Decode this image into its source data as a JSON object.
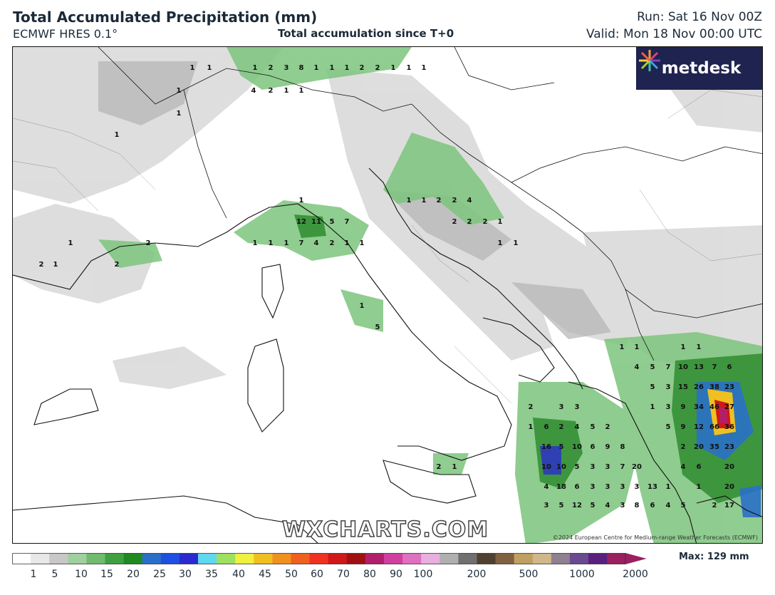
{
  "header": {
    "title": "Total Accumulated Precipitation (mm)",
    "model": "ECMWF HRES 0.1°",
    "subtitle": "Total accumulation since T+0",
    "run": "Run: Sat 16 Nov 00Z",
    "valid": "Valid: Mon 18 Nov 00:00 UTC"
  },
  "map": {
    "logo_text": "metdesk",
    "watermark": "WXCHARTS.COM",
    "copyright": "©2024 European Centre for Medium-range Weather Forecasts (ECMWF)",
    "precip_labels": [
      {
        "text": "1"
      },
      {
        "text": "1"
      },
      {
        "text": "1"
      },
      {
        "text": "2"
      },
      {
        "text": "3"
      },
      {
        "text": "8"
      },
      {
        "text": "1"
      },
      {
        "text": "1"
      },
      {
        "text": "1"
      },
      {
        "text": "2"
      },
      {
        "text": "2"
      },
      {
        "text": "1"
      },
      {
        "text": "1"
      },
      {
        "text": "1"
      },
      {
        "text": "1"
      },
      {
        "text": "4"
      },
      {
        "text": "2"
      },
      {
        "text": "1"
      },
      {
        "text": "1"
      },
      {
        "text": "1"
      },
      {
        "text": "1"
      },
      {
        "text": "1"
      },
      {
        "text": "12"
      },
      {
        "text": "11"
      },
      {
        "text": "5"
      },
      {
        "text": "7"
      },
      {
        "text": "1"
      },
      {
        "text": "1"
      },
      {
        "text": "1"
      },
      {
        "text": "7"
      },
      {
        "text": "4"
      },
      {
        "text": "2"
      },
      {
        "text": "1"
      },
      {
        "text": "1"
      },
      {
        "text": "1"
      },
      {
        "text": "2"
      },
      {
        "text": "2"
      },
      {
        "text": "1"
      },
      {
        "text": "1"
      },
      {
        "text": "5"
      },
      {
        "text": "1"
      },
      {
        "text": "2"
      },
      {
        "text": "1"
      },
      {
        "text": "2"
      },
      {
        "text": "2"
      },
      {
        "text": "4"
      },
      {
        "text": "2"
      },
      {
        "text": "2"
      },
      {
        "text": "2"
      },
      {
        "text": "1"
      },
      {
        "text": "1"
      },
      {
        "text": "1"
      },
      {
        "text": "2"
      },
      {
        "text": "1"
      },
      {
        "text": "1"
      },
      {
        "text": "1"
      },
      {
        "text": "1"
      },
      {
        "text": "1"
      },
      {
        "text": "4"
      },
      {
        "text": "5"
      },
      {
        "text": "7"
      },
      {
        "text": "10"
      },
      {
        "text": "13"
      },
      {
        "text": "7"
      },
      {
        "text": "6"
      },
      {
        "text": "5"
      },
      {
        "text": "3"
      },
      {
        "text": "15"
      },
      {
        "text": "26"
      },
      {
        "text": "38"
      },
      {
        "text": "23"
      },
      {
        "text": "2"
      },
      {
        "text": "3"
      },
      {
        "text": "3"
      },
      {
        "text": "1"
      },
      {
        "text": "3"
      },
      {
        "text": "9"
      },
      {
        "text": "34"
      },
      {
        "text": "46"
      },
      {
        "text": "27"
      },
      {
        "text": "1"
      },
      {
        "text": "6"
      },
      {
        "text": "2"
      },
      {
        "text": "4"
      },
      {
        "text": "5"
      },
      {
        "text": "2"
      },
      {
        "text": "5"
      },
      {
        "text": "9"
      },
      {
        "text": "12"
      },
      {
        "text": "66"
      },
      {
        "text": "36"
      },
      {
        "text": "16"
      },
      {
        "text": "5"
      },
      {
        "text": "10"
      },
      {
        "text": "6"
      },
      {
        "text": "9"
      },
      {
        "text": "8"
      },
      {
        "text": "2"
      },
      {
        "text": "20"
      },
      {
        "text": "35"
      },
      {
        "text": "23"
      },
      {
        "text": "10"
      },
      {
        "text": "10"
      },
      {
        "text": "5"
      },
      {
        "text": "3"
      },
      {
        "text": "3"
      },
      {
        "text": "7"
      },
      {
        "text": "20"
      },
      {
        "text": "4"
      },
      {
        "text": "6"
      },
      {
        "text": "20"
      },
      {
        "text": "4"
      },
      {
        "text": "18"
      },
      {
        "text": "6"
      },
      {
        "text": "3"
      },
      {
        "text": "3"
      },
      {
        "text": "3"
      },
      {
        "text": "3"
      },
      {
        "text": "13"
      },
      {
        "text": "1"
      },
      {
        "text": "1"
      },
      {
        "text": "20"
      },
      {
        "text": "3"
      },
      {
        "text": "5"
      },
      {
        "text": "12"
      },
      {
        "text": "5"
      },
      {
        "text": "4"
      },
      {
        "text": "3"
      },
      {
        "text": "8"
      },
      {
        "text": "6"
      },
      {
        "text": "4"
      },
      {
        "text": "5"
      },
      {
        "text": "2"
      },
      {
        "text": "17"
      }
    ]
  },
  "legend": {
    "max_label": "Max: 129 mm",
    "ticks": [
      "1",
      "5",
      "10",
      "15",
      "20",
      "25",
      "30",
      "35",
      "40",
      "45",
      "50",
      "60",
      "70",
      "80",
      "90",
      "100",
      "200",
      "500",
      "1000",
      "2000"
    ],
    "colors": [
      "#ffffff",
      "#e8e8e8",
      "#c8c8c8",
      "#a0d0a0",
      "#70bb70",
      "#40a040",
      "#208a20",
      "#2a70c8",
      "#1f4fe0",
      "#2a2ad0",
      "#5fd8f0",
      "#a0e060",
      "#f0f040",
      "#f0c020",
      "#f09020",
      "#f06020",
      "#f03020",
      "#d01818",
      "#a01010",
      "#b0206a",
      "#d040a0",
      "#e070c0",
      "#e8b0e0",
      "#b0b0b0",
      "#707070",
      "#504030",
      "#806040",
      "#c0a060",
      "#d0b888",
      "#908090",
      "#6a4a90",
      "#5a2080",
      "#9a2060"
    ]
  }
}
